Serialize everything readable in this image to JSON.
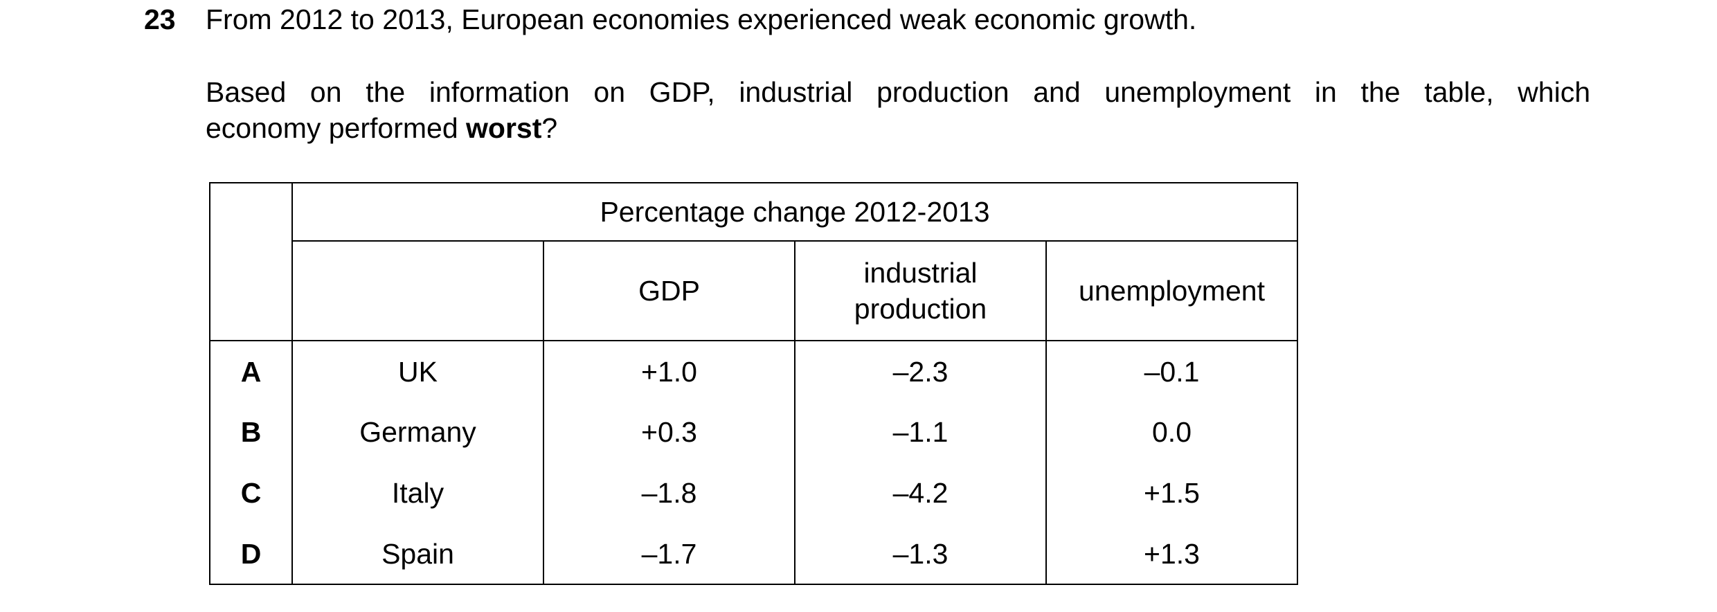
{
  "question": {
    "number": "23",
    "stem": "From 2012 to 2013, European economies experienced weak economic growth.",
    "prompt_line1": "Based on the information on GDP, industrial production and unemployment in the table, which",
    "prompt_line2_before": "economy performed ",
    "prompt_line2_bold": "worst",
    "prompt_line2_after": "?"
  },
  "table": {
    "group_header": "Percentage change 2012-2013",
    "columns": {
      "gdp": "GDP",
      "industrial_line1": "industrial",
      "industrial_line2": "production",
      "unemployment": "unemployment"
    },
    "rows": [
      {
        "letter": "A",
        "country": "UK",
        "gdp": "+1.0",
        "industrial": "–2.3",
        "unemployment": "–0.1"
      },
      {
        "letter": "B",
        "country": "Germany",
        "gdp": "+0.3",
        "industrial": "–1.1",
        "unemployment": "0.0"
      },
      {
        "letter": "C",
        "country": "Italy",
        "gdp": "–1.8",
        "industrial": "–4.2",
        "unemployment": "+1.5"
      },
      {
        "letter": "D",
        "country": "Spain",
        "gdp": "–1.7",
        "industrial": "–1.3",
        "unemployment": "+1.3"
      }
    ]
  }
}
